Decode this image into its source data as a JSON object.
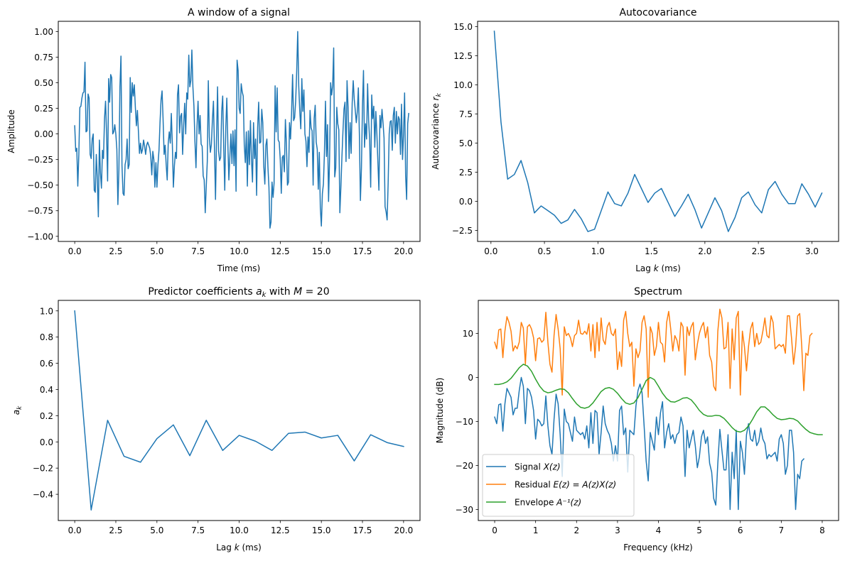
{
  "chart_data": [
    {
      "type": "line",
      "title": "A window of a signal",
      "xlabel": "Time (ms)",
      "ylabel": "Amplitude",
      "xlim": [
        -1.0,
        21.0
      ],
      "ylim": [
        -1.05,
        1.1
      ],
      "xticks": [
        0.0,
        2.5,
        5.0,
        7.5,
        10.0,
        12.5,
        15.0,
        17.5,
        20.0
      ],
      "xtick_labels": [
        "0.0",
        "2.5",
        "5.0",
        "7.5",
        "10.0",
        "12.5",
        "15.0",
        "17.5",
        "20.0"
      ],
      "yticks": [
        -1.0,
        -0.75,
        -0.5,
        -0.25,
        0.0,
        0.25,
        0.5,
        0.75,
        1.0
      ],
      "ytick_labels": [
        "−1.00",
        "−0.75",
        "−0.50",
        "−0.25",
        "0.00",
        "0.25",
        "0.50",
        "0.75",
        "1.00"
      ],
      "grid": false,
      "series": [
        {
          "name": "signal",
          "color": "#1f77b4",
          "x_start": 0.0,
          "x_step": 0.0625,
          "values": [
            0.08,
            -0.17,
            -0.14,
            -0.51,
            -0.2,
            0.26,
            0.27,
            0.35,
            0.4,
            0.41,
            0.7,
            0.02,
            0.03,
            0.39,
            0.35,
            -0.2,
            -0.24,
            -0.05,
            0.0,
            -0.55,
            -0.57,
            -0.2,
            -0.44,
            -0.81,
            -0.06,
            -0.38,
            -0.53,
            -0.16,
            -0.24,
            0.15,
            0.32,
            0.0,
            -0.46,
            0.54,
            0.31,
            0.58,
            0.55,
            0.0,
            0.02,
            0.09,
            0.0,
            -0.15,
            -0.69,
            -0.35,
            0.46,
            0.76,
            -0.31,
            -0.58,
            -0.6,
            -0.3,
            -0.25,
            -0.05,
            -0.34,
            -0.3,
            0.55,
            0.21,
            0.5,
            0.37,
            0.48,
            0.26,
            0.08,
            0.23,
            0.02,
            -0.19,
            -0.09,
            -0.19,
            -0.15,
            -0.06,
            -0.12,
            -0.2,
            -0.11,
            -0.08,
            -0.11,
            -0.14,
            -0.22,
            -0.4,
            -0.17,
            -0.25,
            -0.52,
            -0.28,
            -0.52,
            -0.3,
            -0.16,
            0.11,
            0.33,
            0.42,
            0.14,
            -0.2,
            -0.11,
            -0.3,
            -0.45,
            -0.09,
            0.02,
            -0.09,
            0.2,
            -0.1,
            -0.52,
            -0.31,
            -0.18,
            -0.24,
            0.38,
            0.48,
            0.01,
            0.17,
            0.2,
            -0.2,
            0.08,
            0.3,
            0.0,
            0.4,
            0.34,
            0.77,
            0.46,
            0.52,
            0.82,
            0.46,
            0.27,
            -0.08,
            -0.33,
            0.07,
            0.32,
            0.0,
            0.18,
            -0.1,
            -0.12,
            -0.41,
            -0.45,
            -0.77,
            -0.51,
            -0.27,
            0.52,
            -0.03,
            -0.18,
            -0.1,
            0.14,
            0.32,
            -0.15,
            -0.64,
            -0.04,
            0.46,
            -0.17,
            -0.26,
            -0.23,
            0.22,
            0.37,
            -0.14,
            -0.55,
            0.06,
            0.35,
            -0.09,
            -0.45,
            -0.21,
            0.0,
            -0.29,
            0.03,
            -0.31,
            0.04,
            -0.56,
            0.72,
            0.62,
            0.25,
            0.2,
            0.49,
            0.41,
            0.37,
            -0.11,
            -0.28,
            0.02,
            -0.51,
            0.03,
            -0.3,
            0.13,
            -0.25,
            -0.47,
            0.11,
            -0.24,
            -0.05,
            -0.6,
            0.06,
            0.31,
            -0.09,
            -0.08,
            0.24,
            0.11,
            -0.32,
            -0.49,
            -0.11,
            -0.05,
            -0.32,
            -0.52,
            -0.92,
            -0.86,
            -0.47,
            -0.62,
            -0.48,
            0.47,
            0.02,
            0.45,
            -0.06,
            -0.08,
            -0.25,
            -0.58,
            -0.23,
            -0.21,
            -0.37,
            0.14,
            -0.09,
            -0.5,
            -0.47,
            0.11,
            -0.05,
            0.2,
            0.58,
            0.13,
            0.16,
            0.32,
            0.61,
            1.0,
            0.47,
            0.22,
            0.05,
            0.54,
            0.22,
            0.43,
            0.0,
            -0.07,
            -0.32,
            -0.03,
            -0.18,
            0.23,
            0.06,
            0.03,
            -0.5,
            0.15,
            0.28,
            -0.08,
            -0.15,
            -0.54,
            -0.18,
            -0.72,
            -0.9,
            -0.58,
            -0.49,
            -0.18,
            0.32,
            -0.22,
            0.09,
            -0.66,
            -0.25,
            0.5,
            0.38,
            0.47,
            0.84,
            -0.42,
            -0.33,
            0.26,
            0.1,
            0.04,
            -0.77,
            -0.52,
            -0.23,
            0.02,
            0.24,
            0.31,
            -0.27,
            0.52,
            0.26,
            -0.24,
            0.11,
            -0.19,
            0.3,
            0.52,
            0.34,
            0.23,
            0.11,
            0.22,
            0.45,
            0.0,
            -0.65,
            -0.33,
            0.27,
            0.62,
            -0.13,
            0.1,
            -0.05,
            0.49,
            0.13,
            -0.06,
            -0.52,
            0.38,
            0.15,
            0.27,
            -0.13,
            0.22,
            0.01,
            -0.27,
            -0.55,
            0.18,
            0.06,
            0.24,
            0.11,
            -0.04,
            -0.71,
            -0.76,
            -0.84,
            -0.48,
            0.0,
            0.12,
            0.13,
            -0.16,
            0.18,
            0.26,
            -0.09,
            0.22,
            0.0,
            0.17,
            0.14,
            -0.2,
            0.29,
            -0.25,
            0.0,
            0.4,
            -0.41,
            -0.64,
            0.1,
            0.2
          ]
        }
      ]
    },
    {
      "type": "line",
      "title": "Autocovariance",
      "xlabel": "Lag k (ms)",
      "ylabel": "Autocovariance r_k",
      "xlim": [
        -0.125,
        3.25
      ],
      "ylim": [
        -3.45,
        15.45
      ],
      "xticks": [
        0.0,
        0.5,
        1.0,
        1.5,
        2.0,
        2.5,
        3.0
      ],
      "xtick_labels": [
        "0.0",
        "0.5",
        "1.0",
        "1.5",
        "2.0",
        "2.5",
        "3.0"
      ],
      "yticks": [
        -2.5,
        0.0,
        2.5,
        5.0,
        7.5,
        10.0,
        12.5,
        15.0
      ],
      "ytick_labels": [
        "−2.5",
        "0.0",
        "2.5",
        "5.0",
        "7.5",
        "10.0",
        "12.5",
        "15.0"
      ],
      "grid": false,
      "series": [
        {
          "name": "autocovariance",
          "color": "#1f77b4",
          "x_start": 0.03125,
          "x_step": 0.0625,
          "values": [
            14.6,
            6.8,
            1.9,
            2.3,
            3.5,
            1.6,
            -1.0,
            -0.4,
            -0.8,
            -1.2,
            -1.9,
            -1.6,
            -0.7,
            -1.5,
            -2.6,
            -2.4,
            -0.8,
            0.8,
            -0.2,
            -0.4,
            0.7,
            2.3,
            1.1,
            -0.1,
            0.7,
            1.1,
            -0.1,
            -1.3,
            -0.4,
            0.6,
            -0.7,
            -2.3,
            -1.0,
            0.3,
            -0.8,
            -2.6,
            -1.4,
            0.3,
            0.8,
            -0.3,
            -1.0,
            1.0,
            1.7,
            0.6,
            -0.2,
            -0.2,
            1.5,
            0.6,
            -0.5,
            0.7
          ]
        }
      ]
    },
    {
      "type": "line",
      "title": "Predictor coefficients a_k with M = 20",
      "xlabel": "Lag k (ms)",
      "ylabel": "a_k",
      "xlim": [
        -1.0,
        21.0
      ],
      "ylim": [
        -0.6,
        1.08
      ],
      "xticks": [
        0.0,
        2.5,
        5.0,
        7.5,
        10.0,
        12.5,
        15.0,
        17.5,
        20.0
      ],
      "xtick_labels": [
        "0.0",
        "2.5",
        "5.0",
        "7.5",
        "10.0",
        "12.5",
        "15.0",
        "17.5",
        "20.0"
      ],
      "yticks": [
        -0.4,
        -0.2,
        0.0,
        0.2,
        0.4,
        0.6,
        0.8,
        1.0
      ],
      "ytick_labels": [
        "−0.4",
        "−0.2",
        "0.0",
        "0.2",
        "0.4",
        "0.6",
        "0.8",
        "1.0"
      ],
      "grid": false,
      "series": [
        {
          "name": "coefficients",
          "color": "#1f77b4",
          "x_start": 0,
          "x_step": 1,
          "values": [
            1.0,
            -0.52,
            0.165,
            -0.11,
            -0.155,
            0.025,
            0.13,
            -0.105,
            0.165,
            -0.065,
            0.05,
            0.005,
            -0.065,
            0.065,
            0.075,
            0.03,
            0.05,
            -0.145,
            0.055,
            -0.005,
            -0.035
          ]
        }
      ]
    },
    {
      "type": "line",
      "title": "Spectrum",
      "xlabel": "Frequency (kHz)",
      "ylabel": "Magnitude (dB)",
      "xlim": [
        -0.4,
        8.4
      ],
      "ylim": [
        -32.5,
        17.5
      ],
      "xticks": [
        0,
        1,
        2,
        3,
        4,
        5,
        6,
        7,
        8
      ],
      "xtick_labels": [
        "0",
        "1",
        "2",
        "3",
        "4",
        "5",
        "6",
        "7",
        "8"
      ],
      "yticks": [
        -30,
        -20,
        -10,
        0,
        10
      ],
      "ytick_labels": [
        "−30",
        "−20",
        "−10",
        "0",
        "10"
      ],
      "grid": false,
      "legend": "lower-left",
      "series": [
        {
          "name": "Signal X(z)",
          "legend_prefix": "Signal ",
          "legend_math": "X(z)",
          "color": "#1f77b4",
          "x_start": 0.0,
          "x_step": 0.05,
          "values": [
            -9.0,
            -10.5,
            -6.2,
            -6.0,
            -12.2,
            -6.0,
            -2.5,
            -3.5,
            -4.5,
            -8.5,
            -7.0,
            -7.0,
            -3.0,
            0.0,
            -2.0,
            -10.5,
            -2.5,
            -3.0,
            -4.5,
            -7.5,
            -14.0,
            -9.5,
            -10.0,
            -11.0,
            -10.5,
            -4.2,
            -11.0,
            -15.5,
            -17.5,
            -9.5,
            -3.8,
            -6.0,
            -13.0,
            -22.5,
            -7.2,
            -10.0,
            -10.5,
            -12.5,
            -14.5,
            -9.0,
            -12.0,
            -12.5,
            -13.0,
            -12.5,
            -14.0,
            -11.0,
            -16.0,
            -8.0,
            -15.0,
            -7.5,
            -8.0,
            -17.5,
            -12.5,
            -6.5,
            -10.5,
            -12.0,
            -13.0,
            -15.0,
            -19.0,
            -15.5,
            -19.0,
            -7.5,
            -6.5,
            -13.0,
            -11.5,
            -21.5,
            -12.0,
            -12.5,
            -13.0,
            -6.5,
            -3.0,
            -1.5,
            -3.5,
            -11.0,
            -19.0,
            -23.5,
            -12.5,
            -14.5,
            -16.5,
            -9.0,
            -13.0,
            -8.0,
            -5.5,
            -16.0,
            -12.5,
            -10.5,
            -14.0,
            -13.0,
            -15.0,
            -13.0,
            -12.5,
            -9.0,
            -11.0,
            -22.5,
            -12.0,
            -16.0,
            -14.0,
            -12.0,
            -15.5,
            -20.5,
            -18.0,
            -13.5,
            -12.0,
            -15.0,
            -13.5,
            -19.5,
            -21.5,
            -27.5,
            -29.0,
            -19.5,
            -11.8,
            -16.5,
            -21.0,
            -21.0,
            -13.0,
            -30.0,
            -17.0,
            -23.0,
            -12.0,
            -30.0,
            -14.5,
            -17.0,
            -22.0,
            -13.0,
            -10.5,
            -14.0,
            -14.5,
            -12.0,
            -15.5,
            -14.5,
            -11.5,
            -14.0,
            -15.0,
            -18.5,
            -17.5,
            -18.0,
            -17.5,
            -17.0,
            -19.0,
            -14.0,
            -13.0,
            -15.0,
            -22.0,
            -20.0,
            -12.0,
            -12.0,
            -17.0,
            -30.0,
            -22.0,
            -23.0,
            -19.0,
            -18.5
          ]
        },
        {
          "name": "Residual E(z) = A(z)X(z)",
          "legend_prefix": "Residual ",
          "legend_math": "E(z) = A(z)X(z)",
          "color": "#ff7f0e",
          "x_start": 0.0,
          "x_step": 0.05,
          "values": [
            8.0,
            6.5,
            10.8,
            11.0,
            4.5,
            10.5,
            13.8,
            12.5,
            10.5,
            6.0,
            7.2,
            6.5,
            8.0,
            12.5,
            11.2,
            3.0,
            11.5,
            12.0,
            11.0,
            9.0,
            3.8,
            8.8,
            9.0,
            8.0,
            8.5,
            14.8,
            8.0,
            3.0,
            1.2,
            9.5,
            14.3,
            11.0,
            6.5,
            -4.0,
            11.5,
            9.5,
            10.0,
            9.0,
            7.0,
            9.5,
            10.0,
            13.0,
            10.0,
            9.8,
            10.5,
            9.8,
            12.2,
            6.0,
            12.0,
            4.5,
            12.5,
            6.0,
            13.5,
            8.5,
            7.5,
            11.5,
            12.5,
            10.0,
            9.5,
            11.0,
            1.8,
            5.8,
            2.5,
            13.0,
            15.0,
            10.0,
            7.0,
            8.0,
            -2.0,
            6.5,
            4.5,
            6.0,
            12.5,
            14.0,
            11.0,
            -4.5,
            11.5,
            10.0,
            5.0,
            7.0,
            12.5,
            8.0,
            7.5,
            3.5,
            12.5,
            15.0,
            11.0,
            6.0,
            9.5,
            8.5,
            6.0,
            12.5,
            11.5,
            0.5,
            11.5,
            9.5,
            11.5,
            12.5,
            4.0,
            7.5,
            10.0,
            11.5,
            12.5,
            9.0,
            11.5,
            5.0,
            3.5,
            -2.0,
            -3.0,
            10.5,
            15.5,
            13.5,
            6.5,
            6.8,
            12.5,
            -2.5,
            11.0,
            4.0,
            13.5,
            15.0,
            -4.0,
            10.5,
            7.0,
            1.5,
            7.0,
            11.0,
            12.5,
            7.0,
            10.0,
            7.5,
            8.0,
            10.5,
            13.5,
            9.5,
            9.0,
            14.0,
            12.5,
            6.5,
            7.0,
            7.5,
            7.0,
            7.5,
            5.5,
            14.0,
            14.0,
            9.0,
            3.0,
            7.0,
            14.0,
            14.5,
            7.0,
            -3.0,
            5.5,
            5.0,
            9.5,
            10.0
          ]
        },
        {
          "name": "Envelope A^-1(z)",
          "legend_prefix": "Envelope ",
          "legend_math": "A⁻¹(z)",
          "color": "#2ca02c",
          "x_start": 0.0,
          "x_step": 0.1,
          "values": [
            -1.6,
            -1.6,
            -1.4,
            -1.0,
            -0.2,
            1.0,
            2.2,
            3.0,
            2.6,
            1.4,
            -0.4,
            -2.0,
            -3.1,
            -3.5,
            -3.3,
            -2.9,
            -2.6,
            -2.7,
            -3.5,
            -4.8,
            -6.0,
            -6.8,
            -7.0,
            -6.7,
            -5.8,
            -4.5,
            -3.2,
            -2.5,
            -2.3,
            -2.7,
            -3.6,
            -4.8,
            -5.8,
            -6.1,
            -5.8,
            -4.6,
            -2.7,
            -0.7,
            0.0,
            -0.5,
            -2.0,
            -3.6,
            -4.8,
            -5.5,
            -5.6,
            -5.2,
            -4.7,
            -4.6,
            -5.1,
            -6.2,
            -7.5,
            -8.4,
            -8.8,
            -8.8,
            -8.6,
            -8.7,
            -9.3,
            -10.3,
            -11.4,
            -12.2,
            -12.4,
            -12.0,
            -11.0,
            -9.5,
            -7.8,
            -6.7,
            -6.7,
            -7.5,
            -8.5,
            -9.3,
            -9.6,
            -9.5,
            -9.3,
            -9.4,
            -9.9,
            -10.9,
            -11.8,
            -12.5,
            -12.8,
            -13.0,
            -13.0
          ]
        }
      ]
    }
  ]
}
